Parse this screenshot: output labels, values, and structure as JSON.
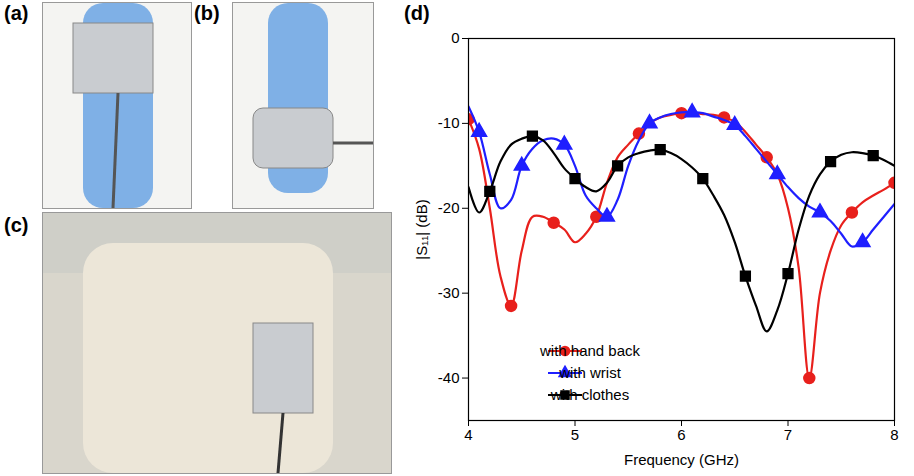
{
  "panel_labels": [
    "(a)",
    "(b)",
    "(c)",
    "(d)"
  ],
  "chart_data": {
    "type": "line",
    "xlabel": "Frequency (GHz)",
    "ylabel": "|S₁₁| (dB)",
    "x": [
      4.0,
      4.1,
      4.2,
      4.3,
      4.4,
      4.5,
      4.6,
      4.7,
      4.8,
      4.9,
      5.0,
      5.1,
      5.2,
      5.3,
      5.4,
      5.5,
      5.6,
      5.7,
      5.8,
      5.9,
      6.0,
      6.1,
      6.2,
      6.3,
      6.4,
      6.5,
      6.6,
      6.7,
      6.8,
      6.9,
      7.0,
      7.1,
      7.2,
      7.3,
      7.4,
      7.5,
      7.6,
      7.7,
      7.8,
      7.9,
      8.0
    ],
    "xlim": [
      4,
      8
    ],
    "xticks": [
      4,
      5,
      6,
      7,
      8
    ],
    "ylim": [
      -45,
      0
    ],
    "yticks": [
      0,
      -10,
      -20,
      -30,
      -40
    ],
    "grid": false,
    "legend": "lower left",
    "series": [
      {
        "name": "with hand back",
        "color": "#e8201c",
        "marker": "circle",
        "values": [
          -9.5,
          -13,
          -20,
          -28,
          -31.5,
          -25,
          -21,
          -21,
          -21.7,
          -22.5,
          -24,
          -23,
          -21,
          -17,
          -14,
          -12.5,
          -11.2,
          -10,
          -9.3,
          -9,
          -8.8,
          -8.8,
          -8.9,
          -9,
          -9.3,
          -9.8,
          -11,
          -12.5,
          -14,
          -16,
          -20,
          -27,
          -40,
          -30,
          -25,
          -22,
          -20.5,
          -19.3,
          -18.5,
          -17.8,
          -17
        ]
      },
      {
        "name": "with wrist",
        "color": "#1f1fff",
        "marker": "triangle",
        "values": [
          -8,
          -11,
          -16,
          -20,
          -19,
          -15,
          -13,
          -12,
          -11.8,
          -12.5,
          -15,
          -18.5,
          -20,
          -21,
          -19,
          -15,
          -12,
          -10,
          -9.3,
          -8.9,
          -8.7,
          -8.7,
          -8.8,
          -9.2,
          -9.6,
          -10.2,
          -11.5,
          -13,
          -14.5,
          -16,
          -17.5,
          -18.8,
          -19.8,
          -20.5,
          -21.5,
          -23,
          -24.5,
          -24,
          -22.5,
          -21,
          -19.5
        ]
      },
      {
        "name": "with clothes",
        "color": "#000000",
        "marker": "square",
        "values": [
          -17.5,
          -20.5,
          -18,
          -14.5,
          -12.5,
          -11.8,
          -11.5,
          -12,
          -13.5,
          -15.3,
          -16.5,
          -17.5,
          -18,
          -17,
          -15,
          -14,
          -13.5,
          -13.2,
          -13.1,
          -13.5,
          -14.2,
          -15.2,
          -16.5,
          -18.5,
          -20.8,
          -24,
          -28,
          -31.5,
          -34.5,
          -32,
          -27.7,
          -22.5,
          -18.5,
          -16,
          -14.5,
          -13.7,
          -13.4,
          -13.5,
          -13.8,
          -14.3,
          -15
        ]
      }
    ]
  }
}
